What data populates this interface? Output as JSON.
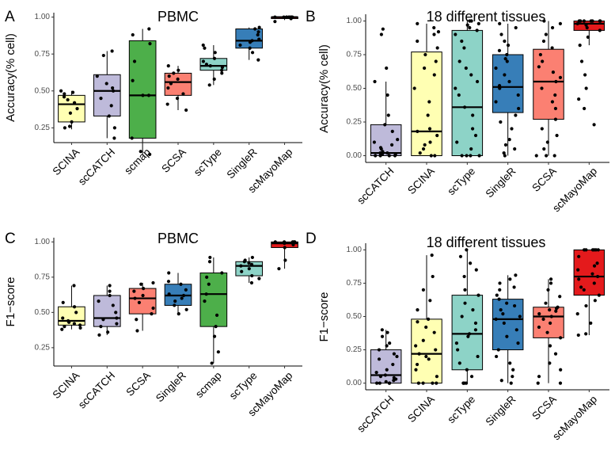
{
  "chart_data": [
    {
      "panel": "A",
      "type": "box",
      "title": "PBMC",
      "ylabel": "Accuracy(% cell)",
      "xlabel": "",
      "ylim": [
        0.15,
        1.03
      ],
      "yticks": [
        0.25,
        0.5,
        0.75,
        1.0
      ],
      "ytick_labels": [
        "0.25",
        "0.50",
        "0.75",
        "1.00"
      ],
      "categories": [
        "SCINA",
        "scCATCH",
        "scmap",
        "SCSA",
        "scType",
        "SingleR",
        "scMayoMap"
      ],
      "colors": [
        "#FFFFB3",
        "#BEBADA",
        "#4DAF4A",
        "#FB8072",
        "#8DD3C7",
        "#377EB8",
        "#E41A1C"
      ],
      "boxes": [
        {
          "q1": 0.29,
          "median": 0.41,
          "q3": 0.47,
          "whisker_low": 0.24,
          "whisker_high": 0.5
        },
        {
          "q1": 0.33,
          "median": 0.5,
          "q3": 0.61,
          "whisker_low": 0.18,
          "whisker_high": 0.77
        },
        {
          "q1": 0.18,
          "median": 0.47,
          "q3": 0.84,
          "whisker_low": 0.07,
          "whisker_high": 0.92
        },
        {
          "q1": 0.47,
          "median": 0.56,
          "q3": 0.62,
          "whisker_low": 0.37,
          "whisker_high": 0.67
        },
        {
          "q1": 0.64,
          "median": 0.67,
          "q3": 0.72,
          "whisker_low": 0.54,
          "whisker_high": 0.81
        },
        {
          "q1": 0.79,
          "median": 0.84,
          "q3": 0.92,
          "whisker_low": 0.71,
          "whisker_high": 0.93
        },
        {
          "q1": 0.99,
          "median": 1.0,
          "q3": 1.0,
          "whisker_low": 0.98,
          "whisker_high": 1.0
        }
      ],
      "points": [
        [
          0.25,
          0.26,
          0.29,
          0.35,
          0.38,
          0.42,
          0.44,
          0.46,
          0.48,
          0.49,
          0.5
        ],
        [
          0.18,
          0.25,
          0.33,
          0.4,
          0.45,
          0.5,
          0.52,
          0.55,
          0.6,
          0.74,
          0.77
        ],
        [
          0.07,
          0.09,
          0.18,
          0.47,
          0.47,
          0.57,
          0.7,
          0.82,
          0.88,
          0.92
        ],
        [
          0.37,
          0.41,
          0.45,
          0.48,
          0.52,
          0.55,
          0.58,
          0.6,
          0.62,
          0.64,
          0.67
        ],
        [
          0.54,
          0.58,
          0.62,
          0.64,
          0.66,
          0.67,
          0.68,
          0.7,
          0.72,
          0.76,
          0.79,
          0.81
        ],
        [
          0.71,
          0.76,
          0.79,
          0.81,
          0.83,
          0.84,
          0.85,
          0.88,
          0.9,
          0.92,
          0.93
        ],
        [
          0.97,
          0.99,
          1.0,
          1.0,
          1.0,
          1.0,
          1.0,
          1.0,
          1.0,
          1.0,
          1.0
        ]
      ]
    },
    {
      "panel": "B",
      "type": "box",
      "title": "18 different tissues",
      "ylabel": "Accuracy(% cell)",
      "xlabel": "",
      "ylim": [
        -0.05,
        1.05
      ],
      "yticks": [
        0.0,
        0.25,
        0.5,
        0.75,
        1.0
      ],
      "ytick_labels": [
        "0.00",
        "0.25",
        "0.50",
        "0.75",
        "1.00"
      ],
      "categories": [
        "scCATCH",
        "SCINA",
        "scType",
        "SingleR",
        "SCSA",
        "scMayoMap"
      ],
      "colors": [
        "#BEBADA",
        "#FFFFB3",
        "#8DD3C7",
        "#377EB8",
        "#FB8072",
        "#E41A1C"
      ],
      "boxes": [
        {
          "q1": 0.0,
          "median": 0.02,
          "q3": 0.23,
          "whisker_low": 0.0,
          "whisker_high": 0.55
        },
        {
          "q1": 0.0,
          "median": 0.18,
          "q3": 0.77,
          "whisker_low": 0.0,
          "whisker_high": 0.98
        },
        {
          "q1": 0.0,
          "median": 0.36,
          "q3": 0.93,
          "whisker_low": 0.0,
          "whisker_high": 1.0
        },
        {
          "q1": 0.32,
          "median": 0.51,
          "q3": 0.75,
          "whisker_low": 0.0,
          "whisker_high": 0.98
        },
        {
          "q1": 0.27,
          "median": 0.55,
          "q3": 0.79,
          "whisker_low": 0.0,
          "whisker_high": 1.0
        },
        {
          "q1": 0.93,
          "median": 0.98,
          "q3": 1.0,
          "whisker_low": 0.82,
          "whisker_high": 1.0
        }
      ],
      "points": [
        [
          0.0,
          0.0,
          0.0,
          0.0,
          0.01,
          0.01,
          0.02,
          0.02,
          0.03,
          0.05,
          0.06,
          0.08,
          0.1,
          0.12,
          0.18,
          0.23,
          0.3,
          0.45,
          0.55,
          0.65,
          0.9,
          0.94
        ],
        [
          0.0,
          0.0,
          0.02,
          0.05,
          0.08,
          0.1,
          0.15,
          0.18,
          0.2,
          0.3,
          0.4,
          0.5,
          0.6,
          0.65,
          0.7,
          0.75,
          0.8,
          0.85,
          0.9,
          0.92,
          0.95,
          0.98
        ],
        [
          0.0,
          0.0,
          0.0,
          0.0,
          0.05,
          0.1,
          0.15,
          0.2,
          0.3,
          0.36,
          0.45,
          0.5,
          0.55,
          0.6,
          0.65,
          0.7,
          0.8,
          0.85,
          0.9,
          0.93,
          0.95,
          0.97,
          0.98,
          1.0,
          1.0
        ],
        [
          0.0,
          0.02,
          0.05,
          0.08,
          0.12,
          0.2,
          0.25,
          0.3,
          0.35,
          0.4,
          0.45,
          0.5,
          0.52,
          0.55,
          0.6,
          0.65,
          0.7,
          0.72,
          0.75,
          0.78,
          0.82,
          0.85,
          0.9,
          0.95,
          0.98
        ],
        [
          0.0,
          0.0,
          0.0,
          0.05,
          0.1,
          0.15,
          0.2,
          0.27,
          0.35,
          0.4,
          0.45,
          0.5,
          0.55,
          0.58,
          0.62,
          0.66,
          0.7,
          0.75,
          0.8,
          0.85,
          0.9,
          0.95,
          0.98,
          1.0
        ],
        [
          0.23,
          0.35,
          0.42,
          0.5,
          0.6,
          0.7,
          0.82,
          0.88,
          0.93,
          0.95,
          0.97,
          0.98,
          1.0,
          1.0,
          1.0,
          1.0,
          1.0,
          1.0,
          1.0,
          1.0
        ]
      ]
    },
    {
      "panel": "C",
      "type": "box",
      "title": "PBMC",
      "ylabel": "F1−score",
      "xlabel": "",
      "ylim": [
        0.12,
        1.03
      ],
      "yticks": [
        0.25,
        0.5,
        0.75,
        1.0
      ],
      "ytick_labels": [
        "0.25",
        "0.50",
        "0.75",
        "1.00"
      ],
      "categories": [
        "SCINA",
        "scCATCH",
        "SCSA",
        "SingleR",
        "scmap",
        "scType",
        "scMayoMap"
      ],
      "colors": [
        "#FFFFB3",
        "#BEBADA",
        "#FB8072",
        "#377EB8",
        "#4DAF4A",
        "#8DD3C7",
        "#E41A1C"
      ],
      "boxes": [
        {
          "q1": 0.41,
          "median": 0.44,
          "q3": 0.54,
          "whisker_low": 0.38,
          "whisker_high": 0.69
        },
        {
          "q1": 0.4,
          "median": 0.46,
          "q3": 0.62,
          "whisker_low": 0.34,
          "whisker_high": 0.69
        },
        {
          "q1": 0.49,
          "median": 0.6,
          "q3": 0.67,
          "whisker_low": 0.37,
          "whisker_high": 0.71
        },
        {
          "q1": 0.55,
          "median": 0.62,
          "q3": 0.7,
          "whisker_low": 0.49,
          "whisker_high": 0.78
        },
        {
          "q1": 0.4,
          "median": 0.63,
          "q3": 0.78,
          "whisker_low": 0.14,
          "whisker_high": 0.89
        },
        {
          "q1": 0.76,
          "median": 0.83,
          "q3": 0.86,
          "whisker_low": 0.71,
          "whisker_high": 0.89
        },
        {
          "q1": 0.96,
          "median": 0.99,
          "q3": 1.0,
          "whisker_low": 0.81,
          "whisker_high": 1.0
        }
      ],
      "points": [
        [
          0.38,
          0.39,
          0.4,
          0.41,
          0.42,
          0.43,
          0.44,
          0.46,
          0.5,
          0.54,
          0.57,
          0.69
        ],
        [
          0.34,
          0.36,
          0.4,
          0.42,
          0.45,
          0.46,
          0.5,
          0.55,
          0.58,
          0.62,
          0.65,
          0.69
        ],
        [
          0.37,
          0.45,
          0.49,
          0.53,
          0.57,
          0.6,
          0.62,
          0.65,
          0.67,
          0.7,
          0.71
        ],
        [
          0.49,
          0.52,
          0.55,
          0.58,
          0.6,
          0.62,
          0.63,
          0.66,
          0.7,
          0.72,
          0.78
        ],
        [
          0.14,
          0.22,
          0.33,
          0.4,
          0.48,
          0.58,
          0.63,
          0.7,
          0.75,
          0.78,
          0.86,
          0.89
        ],
        [
          0.71,
          0.74,
          0.76,
          0.79,
          0.81,
          0.83,
          0.84,
          0.85,
          0.86,
          0.87,
          0.89
        ],
        [
          0.81,
          0.87,
          0.96,
          0.98,
          0.99,
          1.0,
          1.0,
          1.0,
          1.0,
          1.0
        ]
      ]
    },
    {
      "panel": "D",
      "type": "box",
      "title": "18 different tissues",
      "ylabel": "F1−score",
      "xlabel": "",
      "ylim": [
        -0.05,
        1.05
      ],
      "yticks": [
        0.0,
        0.25,
        0.5,
        0.75,
        1.0
      ],
      "ytick_labels": [
        "0.00",
        "0.25",
        "0.50",
        "0.75",
        "1.00"
      ],
      "categories": [
        "scCATCH",
        "SCINA",
        "scType",
        "SingleR",
        "SCSA",
        "scMayoMap"
      ],
      "colors": [
        "#BEBADA",
        "#FFFFB3",
        "#8DD3C7",
        "#377EB8",
        "#FB8072",
        "#E41A1C"
      ],
      "boxes": [
        {
          "q1": 0.0,
          "median": 0.06,
          "q3": 0.25,
          "whisker_low": 0.0,
          "whisker_high": 0.4
        },
        {
          "q1": 0.0,
          "median": 0.22,
          "q3": 0.48,
          "whisker_low": 0.0,
          "whisker_high": 0.96
        },
        {
          "q1": 0.1,
          "median": 0.37,
          "q3": 0.66,
          "whisker_low": 0.0,
          "whisker_high": 1.0
        },
        {
          "q1": 0.25,
          "median": 0.48,
          "q3": 0.63,
          "whisker_low": 0.0,
          "whisker_high": 0.81
        },
        {
          "q1": 0.34,
          "median": 0.5,
          "q3": 0.57,
          "whisker_low": 0.0,
          "whisker_high": 0.78
        },
        {
          "q1": 0.66,
          "median": 0.8,
          "q3": 1.0,
          "whisker_low": 0.36,
          "whisker_high": 1.0
        }
      ],
      "points": [
        [
          0.0,
          0.0,
          0.0,
          0.0,
          0.01,
          0.02,
          0.03,
          0.04,
          0.05,
          0.06,
          0.08,
          0.1,
          0.14,
          0.18,
          0.2,
          0.22,
          0.25,
          0.28,
          0.3,
          0.35,
          0.38,
          0.4
        ],
        [
          0.0,
          0.0,
          0.0,
          0.0,
          0.05,
          0.1,
          0.14,
          0.18,
          0.2,
          0.22,
          0.25,
          0.28,
          0.32,
          0.38,
          0.42,
          0.46,
          0.48,
          0.55,
          0.62,
          0.7,
          0.8,
          0.96
        ],
        [
          0.0,
          0.0,
          0.0,
          0.0,
          0.05,
          0.1,
          0.15,
          0.2,
          0.25,
          0.3,
          0.35,
          0.37,
          0.4,
          0.45,
          0.5,
          0.55,
          0.6,
          0.66,
          0.7,
          0.8,
          0.85,
          0.9,
          0.95,
          1.0
        ],
        [
          0.0,
          0.02,
          0.05,
          0.1,
          0.15,
          0.2,
          0.25,
          0.3,
          0.35,
          0.4,
          0.45,
          0.48,
          0.5,
          0.52,
          0.55,
          0.58,
          0.6,
          0.63,
          0.66,
          0.7,
          0.72,
          0.75,
          0.78,
          0.81
        ],
        [
          0.0,
          0.0,
          0.05,
          0.1,
          0.15,
          0.22,
          0.28,
          0.34,
          0.38,
          0.42,
          0.45,
          0.48,
          0.5,
          0.52,
          0.54,
          0.55,
          0.56,
          0.57,
          0.6,
          0.65,
          0.7,
          0.75,
          0.78
        ],
        [
          0.36,
          0.37,
          0.45,
          0.52,
          0.58,
          0.62,
          0.66,
          0.7,
          0.72,
          0.75,
          0.78,
          0.8,
          0.82,
          0.85,
          0.88,
          0.9,
          0.95,
          1.0,
          1.0,
          1.0,
          1.0,
          1.0,
          1.0
        ]
      ]
    }
  ]
}
